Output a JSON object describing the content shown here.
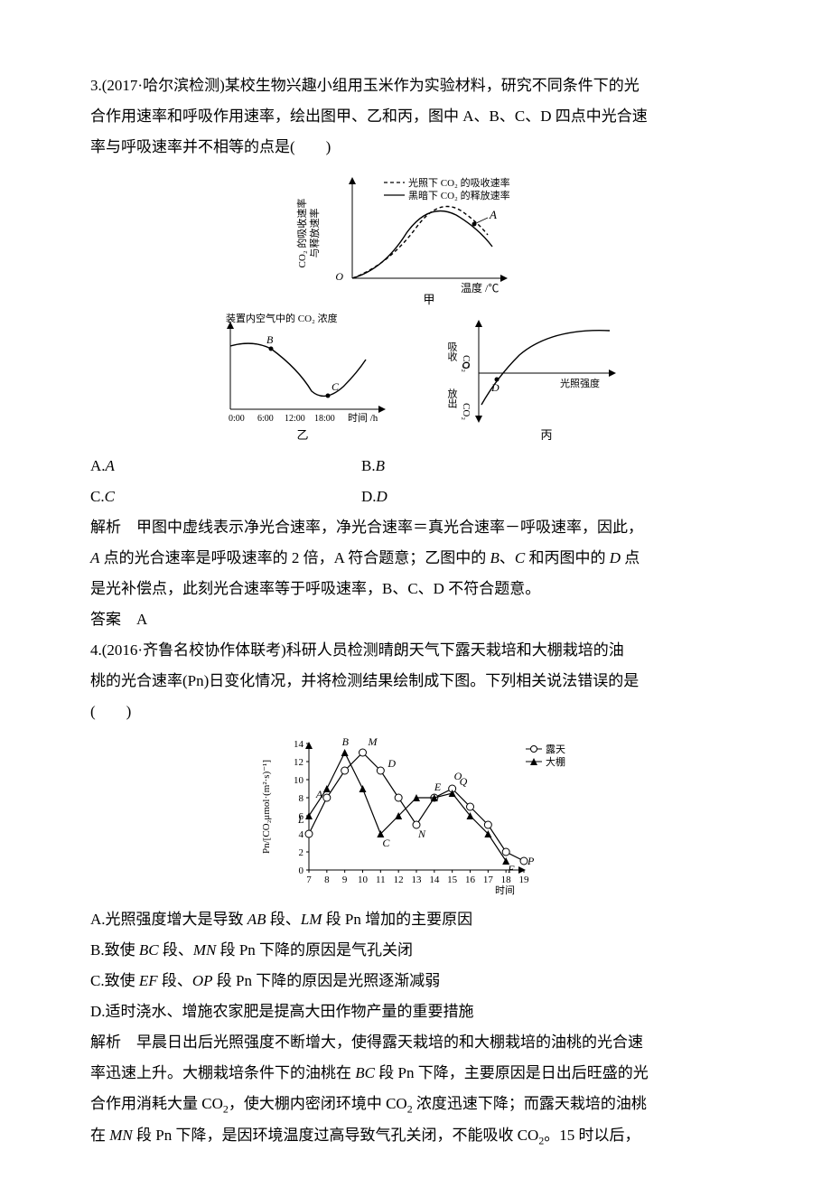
{
  "q3": {
    "number": "3.",
    "source": "(2017·哈尔滨检测)",
    "stem_line1": "某校生物兴趣小组用玉米作为实验材料，研究不同条件下的光",
    "stem_line2": "合作用速率和呼吸作用速率，绘出图甲、乙和丙，图中 A、B、C、D 四点中光合速",
    "stem_line3": "率与呼吸速率并不相等的点是(　　)",
    "fig1": {
      "y_label": "CO₂ 的吸收速率\n与释放速率",
      "legend_dash": "光照下 CO₂ 的吸收速率",
      "legend_solid": "黑暗下 CO₂ 的释放速率",
      "point": "A",
      "origin": "O",
      "x_label": "温度 /℃",
      "caption": "甲",
      "dash_color": "#000000",
      "solid_color": "#000000",
      "bg": "#ffffff"
    },
    "fig2": {
      "y_label": "装置内空气中的 CO₂ 浓度",
      "pt_b": "B",
      "pt_c": "C",
      "ticks": [
        "0:00",
        "6:00",
        "12:00",
        "18:00"
      ],
      "x_label": "时间 /h",
      "caption": "乙"
    },
    "fig3": {
      "y_top": "吸收",
      "y_mid": "CO₂",
      "y_bot": "放出",
      "pt_d": "D",
      "origin": "O",
      "x_label": "光照强度",
      "caption": "丙"
    },
    "opts": {
      "a": "A.A",
      "b": "B.B",
      "c": "C.C",
      "d": "D.D"
    },
    "ans_label": "解析",
    "ans_l1": "甲图中虚线表示净光合速率，净光合速率＝真光合速率－呼吸速率，因此，",
    "ans_l2": "A 点的光合速率是呼吸速率的 2 倍，A 符合题意；乙图中的 B、C 和丙图中的 D 点",
    "ans_l3": "是光补偿点，此刻光合速率等于呼吸速率，B、C、D 不符合题意。",
    "answer_label": "答案",
    "answer": "A"
  },
  "q4": {
    "number": "4.",
    "source": "(2016·齐鲁名校协作体联考)",
    "stem_l1": "科研人员检测晴朗天气下露天栽培和大棚栽培的油",
    "stem_l2": "桃的光合速率(Pn)日变化情况，并将检测结果绘制成下图。下列相关说法错误的是",
    "stem_l3": "(　　)",
    "chart": {
      "type": "line",
      "x_label": "时间",
      "y_label": "Pn/[CO₂μmol·(m²·s)⁻¹]",
      "x_ticks": [
        7,
        8,
        9,
        10,
        11,
        12,
        13,
        14,
        15,
        16,
        17,
        18,
        19
      ],
      "y_ticks": [
        0,
        2,
        4,
        6,
        8,
        10,
        12,
        14
      ],
      "ylim": [
        0,
        14
      ],
      "legend": {
        "open": "露天",
        "solid": "大棚"
      },
      "series_open": {
        "x": [
          7,
          8,
          9,
          10,
          11,
          12,
          13,
          14,
          15,
          16,
          17,
          18,
          19
        ],
        "y": [
          4,
          8,
          11,
          13,
          11,
          8,
          5,
          8,
          9,
          7,
          5,
          2,
          1
        ],
        "marker": "circle-open",
        "color": "#000000"
      },
      "series_solid": {
        "x": [
          7,
          8,
          9,
          10,
          11,
          12,
          13,
          14,
          15,
          16,
          17,
          18
        ],
        "y": [
          6,
          9,
          13,
          9,
          4,
          6,
          8,
          8,
          8.5,
          6,
          4,
          1
        ],
        "marker": "triangle-solid",
        "color": "#000000"
      },
      "points": {
        "A": [
          8,
          8.0
        ],
        "B": [
          9,
          13
        ],
        "M": [
          10,
          13
        ],
        "C": [
          11,
          4
        ],
        "D": [
          11,
          11
        ],
        "N": [
          13,
          5
        ],
        "E": [
          14,
          8
        ],
        "Q": [
          15,
          8.8
        ],
        "O": [
          15,
          9
        ],
        "P": [
          18.8,
          1.0
        ],
        "F": [
          17.9,
          1.0
        ],
        "L": [
          7,
          5.8
        ]
      },
      "grid_color": "#e0e0e0",
      "background_color": "#ffffff",
      "line_width": 1.2,
      "marker_size": 4,
      "font_size": 11
    },
    "opt_a": "A.光照强度增大是导致 AB 段、LM 段 Pn 增加的主要原因",
    "opt_b": "B.致使 BC 段、MN 段 Pn 下降的原因是气孔关闭",
    "opt_c": "C.致使 EF 段、OP 段 Pn 下降的原因是光照逐渐减弱",
    "opt_d": "D.适时浇水、增施农家肥是提高大田作物产量的重要措施",
    "ans_label": "解析",
    "ans_l1": "早晨日出后光照强度不断增大，使得露天栽培的和大棚栽培的油桃的光合速",
    "ans_l2": "率迅速上升。大棚栽培条件下的油桃在 BC 段 Pn 下降，主要原因是日出后旺盛的光",
    "ans_l3": "合作用消耗大量 CO₂，使大棚内密闭环境中 CO₂ 浓度迅速下降；而露天栽培的油桃",
    "ans_l4": "在 MN 段 Pn 下降，是因环境温度过高导致气孔关闭，不能吸收 CO₂。15 时以后，"
  }
}
